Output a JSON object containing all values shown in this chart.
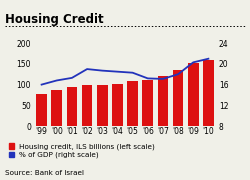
{
  "title": "Housing Credit",
  "years": [
    "'99",
    "'00",
    "'01",
    "'02",
    "'03",
    "'04",
    "'05",
    "'06",
    "'07",
    "'08",
    "'09",
    "'10"
  ],
  "bar_values": [
    78,
    88,
    93,
    100,
    100,
    101,
    108,
    111,
    120,
    135,
    153,
    160
  ],
  "line_values": [
    16.0,
    16.8,
    17.3,
    19.0,
    18.7,
    18.5,
    18.3,
    17.2,
    17.1,
    18.0,
    20.3,
    21.0
  ],
  "bar_color": "#dd1111",
  "line_color": "#2233bb",
  "left_ylim": [
    0,
    200
  ],
  "right_ylim": [
    8,
    24
  ],
  "left_yticks": [
    0,
    50,
    100,
    150,
    200
  ],
  "right_yticks": [
    8,
    12,
    16,
    20,
    24
  ],
  "source": "Source: Bank of Israel",
  "legend_bar": "Housing credit, ILS billions (left scale)",
  "legend_line": "% of GDP (right scale)",
  "bg_color": "#f0f0e8",
  "title_fontsize": 8.5,
  "tick_fontsize": 5.5,
  "legend_fontsize": 5.2,
  "source_fontsize": 5.2
}
